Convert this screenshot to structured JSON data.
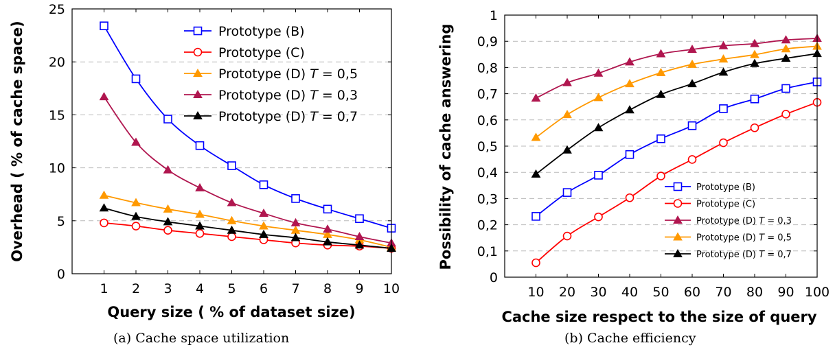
{
  "chart_data": [
    {
      "type": "line",
      "caption": "(a) Cache space utilization",
      "xlabel": "Query size ( % of dataset size)",
      "ylabel": "Overhead ( % of cache space)",
      "xlim": [
        0,
        10
      ],
      "ylim": [
        0,
        25
      ],
      "x_ticks": [
        "1",
        "2",
        "3",
        "4",
        "5",
        "6",
        "7",
        "8",
        "9",
        "10"
      ],
      "y_ticks": [
        "0",
        "5",
        "10",
        "15",
        "20",
        "25"
      ],
      "grid": "horizontal dashed",
      "legend_position": "top-right",
      "x": [
        1,
        2,
        3,
        4,
        5,
        6,
        7,
        8,
        9,
        10
      ],
      "series": [
        {
          "name": "Prototype (B)",
          "color": "#0000ff",
          "marker": "square",
          "values": [
            23.4,
            18.4,
            14.6,
            12.1,
            10.2,
            8.4,
            7.1,
            6.1,
            5.2,
            4.3
          ]
        },
        {
          "name": "Prototype (C)",
          "color": "#ff0000",
          "marker": "circle",
          "values": [
            4.8,
            4.5,
            4.1,
            3.8,
            3.5,
            3.2,
            2.9,
            2.7,
            2.6,
            2.4
          ]
        },
        {
          "name": "Prototype (D) T = 0,5",
          "color": "#ff9900",
          "marker": "triangle",
          "values": [
            7.4,
            6.7,
            6.1,
            5.6,
            5.0,
            4.5,
            4.1,
            3.7,
            3.2,
            2.5
          ]
        },
        {
          "name": "Prototype (D) T = 0,3",
          "color": "#b0164f",
          "marker": "triangle",
          "values": [
            16.7,
            12.4,
            9.8,
            8.1,
            6.7,
            5.7,
            4.8,
            4.2,
            3.5,
            2.9
          ]
        },
        {
          "name": "Prototype (D) T = 0,7",
          "color": "#000000",
          "marker": "triangle",
          "values": [
            6.2,
            5.4,
            4.9,
            4.5,
            4.1,
            3.7,
            3.4,
            3.0,
            2.7,
            2.4
          ]
        }
      ]
    },
    {
      "type": "line",
      "caption": "(b) Cache efficiency",
      "xlabel": "Cache size respect to the size of query",
      "ylabel": "Possibility of cache answering",
      "xlim": [
        0,
        100
      ],
      "ylim": [
        0,
        1
      ],
      "x_ticks": [
        "10",
        "20",
        "30",
        "40",
        "50",
        "60",
        "70",
        "80",
        "90",
        "100"
      ],
      "y_ticks": [
        "0",
        "0,1",
        "0,2",
        "0,3",
        "0,4",
        "0,5",
        "0,6",
        "0,7",
        "0,8",
        "0,9",
        "1"
      ],
      "grid": "horizontal dashed",
      "legend_position": "bottom-right",
      "x": [
        10,
        20,
        30,
        40,
        50,
        60,
        70,
        80,
        90,
        100
      ],
      "series": [
        {
          "name": "Prototype (B)",
          "color": "#0000ff",
          "marker": "square",
          "values": [
            0.232,
            0.323,
            0.389,
            0.468,
            0.528,
            0.578,
            0.643,
            0.68,
            0.72,
            0.745
          ]
        },
        {
          "name": "Prototype (C)",
          "color": "#ff0000",
          "marker": "circle",
          "values": [
            0.055,
            0.157,
            0.23,
            0.303,
            0.386,
            0.449,
            0.513,
            0.57,
            0.622,
            0.667
          ]
        },
        {
          "name": "Prototype (D) T = 0,3",
          "color": "#b0164f",
          "marker": "triangle",
          "values": [
            0.683,
            0.742,
            0.778,
            0.821,
            0.852,
            0.869,
            0.883,
            0.891,
            0.905,
            0.911
          ]
        },
        {
          "name": "Prototype (D) T = 0,5",
          "color": "#ff9900",
          "marker": "triangle",
          "values": [
            0.533,
            0.62,
            0.685,
            0.738,
            0.78,
            0.812,
            0.832,
            0.849,
            0.871,
            0.881
          ]
        },
        {
          "name": "Prototype (D) T = 0,7",
          "color": "#000000",
          "marker": "triangle",
          "values": [
            0.393,
            0.485,
            0.57,
            0.638,
            0.697,
            0.738,
            0.782,
            0.815,
            0.835,
            0.853
          ]
        }
      ]
    }
  ]
}
